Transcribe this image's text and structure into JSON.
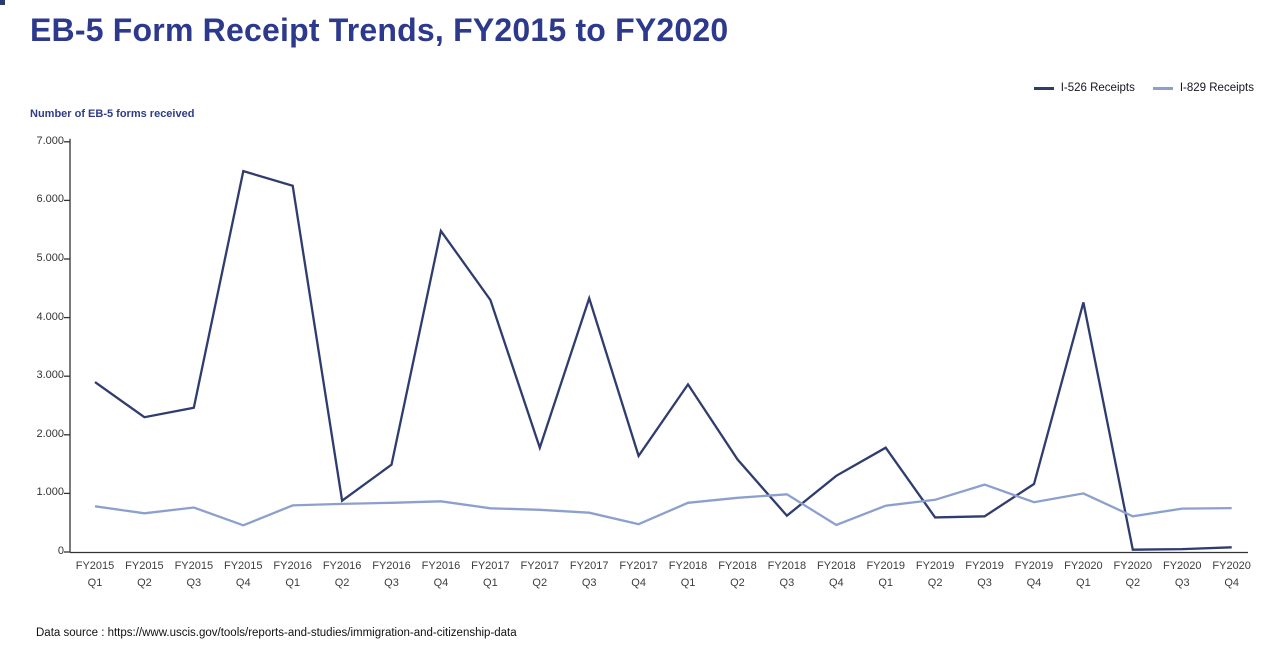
{
  "page": {
    "title": "EB-5 Form Receipt Trends, FY2015 to FY2020",
    "footer": "Data source : https://www.uscis.gov/tools/reports-and-studies/immigration-and-citizenship-data"
  },
  "colors": {
    "title_navy": "#2c398c",
    "i526_line": "#2f3c6e",
    "i829_line": "#8da0cd",
    "axis": "#333333",
    "tick_text": "#333333"
  },
  "chart_data": {
    "type": "line",
    "title": "EB-5 Form Receipt Trends, FY2015 to FY2020",
    "ylabel": "Number of EB-5 forms received",
    "xlabel": "",
    "ylim": [
      0,
      7000
    ],
    "grid": false,
    "legend_position": "top-right",
    "yticks": [
      {
        "value": 7000,
        "label": "7.000"
      },
      {
        "value": 6000,
        "label": "6.000"
      },
      {
        "value": 5000,
        "label": "5.000"
      },
      {
        "value": 4000,
        "label": "4.000"
      },
      {
        "value": 3000,
        "label": "3.000"
      },
      {
        "value": 2000,
        "label": "2.000"
      },
      {
        "value": 1000,
        "label": "1.000"
      },
      {
        "value": 0,
        "label": "0"
      }
    ],
    "categories": [
      "FY2015 Q1",
      "FY2015 Q2",
      "FY2015 Q3",
      "FY2015 Q4",
      "FY2016 Q1",
      "FY2016 Q2",
      "FY2016 Q3",
      "FY2016 Q4",
      "FY2017 Q1",
      "FY2017 Q2",
      "FY2017 Q3",
      "FY2017 Q4",
      "FY2018 Q1",
      "FY2018 Q2",
      "FY2018 Q3",
      "FY2018 Q4",
      "FY2019 Q1",
      "FY2019 Q2",
      "FY2019 Q3",
      "FY2019 Q4",
      "FY2020 Q1",
      "FY2020 Q2",
      "FY2020 Q3",
      "FY2020 Q4"
    ],
    "series": [
      {
        "name": "I-526 Receipts",
        "color": "#2f3c6e",
        "values": [
          2900,
          2300,
          2460,
          6500,
          6250,
          875,
          1490,
          5480,
          4300,
          1780,
          4330,
          1640,
          2860,
          1580,
          620,
          1300,
          1780,
          590,
          610,
          1160,
          4260,
          40,
          50,
          80
        ]
      },
      {
        "name": "I-829 Receipts",
        "color": "#8da0cd",
        "values": [
          780,
          660,
          760,
          455,
          795,
          820,
          840,
          865,
          745,
          720,
          670,
          475,
          840,
          925,
          985,
          460,
          790,
          890,
          1150,
          850,
          1000,
          610,
          740,
          750
        ]
      }
    ]
  }
}
